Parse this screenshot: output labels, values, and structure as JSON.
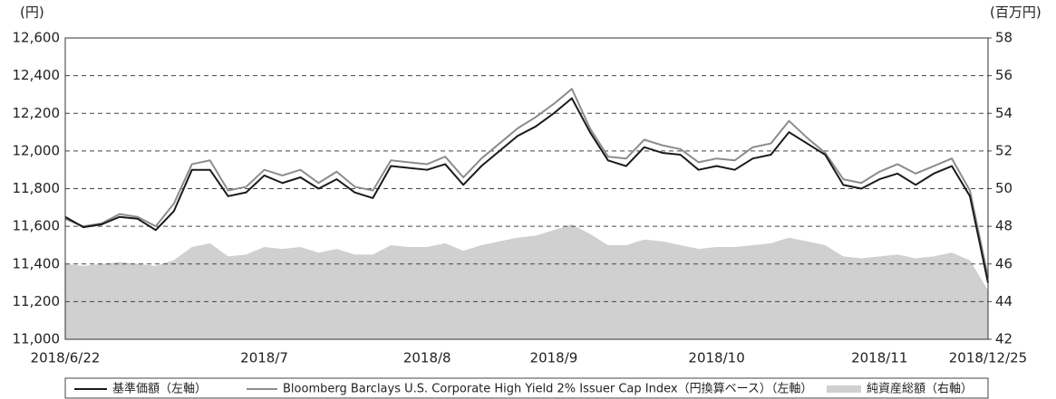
{
  "chart_data": {
    "type": "line",
    "y_unit_label": "(円)",
    "y2_unit_label": "(百万円)",
    "categories": [
      "2018/6/22",
      null,
      null,
      null,
      null,
      null,
      null,
      null,
      null,
      null,
      null,
      "2018/7",
      null,
      null,
      null,
      null,
      null,
      null,
      null,
      null,
      "2018/8",
      null,
      null,
      null,
      null,
      null,
      null,
      "2018/9",
      null,
      null,
      null,
      null,
      null,
      null,
      null,
      null,
      "2018/10",
      null,
      null,
      null,
      null,
      null,
      null,
      null,
      null,
      "2018/11",
      null,
      null,
      null,
      null,
      null,
      "2018/12/25"
    ],
    "series": [
      {
        "name": "基準価額（左軸）",
        "color": "#1a1a1a",
        "axis": "y",
        "values": [
          11650,
          11595,
          11610,
          11650,
          11640,
          11580,
          11680,
          11900,
          11900,
          11760,
          11780,
          11870,
          11830,
          11860,
          11800,
          11850,
          11780,
          11750,
          11920,
          11910,
          11900,
          11930,
          11820,
          11920,
          12000,
          12080,
          12130,
          12200,
          12280,
          12100,
          11950,
          11920,
          12020,
          11990,
          11980,
          11900,
          11920,
          11900,
          11960,
          11980,
          12100,
          12040,
          11980,
          11820,
          11800,
          11850,
          11880,
          11820,
          11880,
          11920,
          11760,
          11300
        ]
      },
      {
        "name": "Bloomberg Barclays U.S. Corporate High Yield 2% Issuer Cap Index（円換算ベース）（左軸）",
        "color": "#8c8c8c",
        "axis": "y",
        "values": [
          11640,
          11600,
          11615,
          11665,
          11650,
          11600,
          11720,
          11930,
          11950,
          11790,
          11810,
          11900,
          11870,
          11900,
          11830,
          11890,
          11810,
          11790,
          11950,
          11940,
          11930,
          11970,
          11860,
          11960,
          12040,
          12120,
          12180,
          12250,
          12330,
          12120,
          11970,
          11960,
          12060,
          12030,
          12010,
          11940,
          11960,
          11950,
          12020,
          12040,
          12160,
          12070,
          11990,
          11850,
          11830,
          11890,
          11930,
          11880,
          11920,
          11960,
          11790,
          11330
        ]
      },
      {
        "name": "純資産総額（右軸）",
        "color": "#d0d0d0",
        "axis": "y2",
        "area": true,
        "values": [
          46.0,
          45.9,
          46.0,
          46.1,
          46.0,
          45.9,
          46.2,
          46.9,
          47.1,
          46.4,
          46.5,
          46.9,
          46.8,
          46.9,
          46.6,
          46.8,
          46.5,
          46.5,
          47.0,
          46.9,
          46.9,
          47.1,
          46.7,
          47.0,
          47.2,
          47.4,
          47.5,
          47.8,
          48.1,
          47.6,
          47.0,
          47.0,
          47.3,
          47.2,
          47.0,
          46.8,
          46.9,
          46.9,
          47.0,
          47.1,
          47.4,
          47.2,
          47.0,
          46.4,
          46.3,
          46.4,
          46.5,
          46.3,
          46.4,
          46.6,
          46.2,
          44.6
        ]
      }
    ],
    "ylim": [
      11000,
      12600
    ],
    "yticks": [
      {
        "value": 11000,
        "label": "11,000"
      },
      {
        "value": 11200,
        "label": "11,200"
      },
      {
        "value": 11400,
        "label": "11,400"
      },
      {
        "value": 11600,
        "label": "11,600"
      },
      {
        "value": 11800,
        "label": "11,800"
      },
      {
        "value": 12000,
        "label": "12,000"
      },
      {
        "value": 12200,
        "label": "12,200"
      },
      {
        "value": 12400,
        "label": "12,400"
      },
      {
        "value": 12600,
        "label": "12,600"
      }
    ],
    "y2lim": [
      42,
      58
    ],
    "y2ticks": [
      42,
      44,
      46,
      48,
      50,
      52,
      54,
      56,
      58
    ],
    "grid": true
  }
}
